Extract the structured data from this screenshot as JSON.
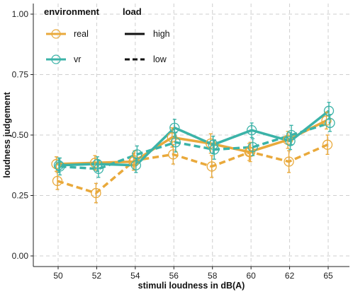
{
  "chart_data": {
    "type": "line",
    "xlabel": "stimuli loudness in dB(A)",
    "ylabel": "loudness judgement",
    "categories": [
      "50",
      "52",
      "54",
      "56",
      "58",
      "60",
      "62",
      "65"
    ],
    "ylim": [
      0,
      1
    ],
    "y_ticks": [
      "0.00",
      "0.25",
      "0.50",
      "0.75",
      "1.00"
    ],
    "grid": "dashed",
    "legend_placement": "top-left",
    "legend": {
      "environment_title": "environment",
      "load_title": "load",
      "environment_items": [
        {
          "label": "real",
          "color": "#E9A93B"
        },
        {
          "label": "vr",
          "color": "#3BB3A8"
        }
      ],
      "load_items": [
        {
          "label": "high",
          "linestyle": "solid"
        },
        {
          "label": "low",
          "linestyle": "dashed"
        }
      ]
    },
    "series": [
      {
        "environment": "real",
        "load": "high",
        "color": "#E9A93B",
        "dashed": false,
        "values": [
          0.38,
          0.385,
          0.39,
          0.49,
          0.465,
          0.43,
          0.48,
          0.56
        ],
        "errors": [
          0.03,
          0.03,
          0.035,
          0.04,
          0.04,
          0.035,
          0.035,
          0.035
        ]
      },
      {
        "environment": "real",
        "load": "low",
        "color": "#E9A93B",
        "dashed": true,
        "values": [
          0.31,
          0.26,
          0.395,
          0.42,
          0.37,
          0.43,
          0.39,
          0.46
        ],
        "errors": [
          0.035,
          0.04,
          0.04,
          0.04,
          0.045,
          0.04,
          0.045,
          0.04
        ]
      },
      {
        "environment": "vr",
        "load": "high",
        "color": "#3BB3A8",
        "dashed": false,
        "values": [
          0.375,
          0.38,
          0.375,
          0.53,
          0.46,
          0.52,
          0.475,
          0.6
        ],
        "errors": [
          0.03,
          0.03,
          0.03,
          0.035,
          0.035,
          0.03,
          0.035,
          0.035
        ]
      },
      {
        "environment": "vr",
        "load": "low",
        "color": "#3BB3A8",
        "dashed": true,
        "values": [
          0.37,
          0.36,
          0.42,
          0.47,
          0.44,
          0.45,
          0.5,
          0.55
        ],
        "errors": [
          0.035,
          0.035,
          0.035,
          0.04,
          0.04,
          0.035,
          0.04,
          0.035
        ]
      }
    ]
  }
}
